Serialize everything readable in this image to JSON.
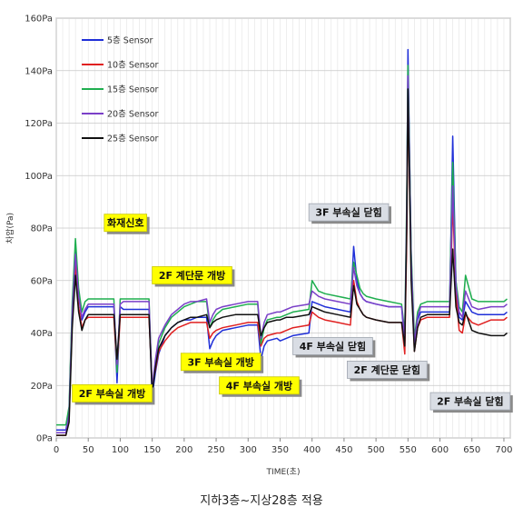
{
  "chart_data": {
    "type": "line",
    "title": "",
    "xlabel": "TIME(초)",
    "ylabel": "차압(Pa)",
    "xlim": [
      0,
      710
    ],
    "ylim": [
      0,
      160
    ],
    "x_ticks": [
      "0",
      "50",
      "100",
      "150",
      "200",
      "250",
      "300",
      "350",
      "400",
      "450",
      "500",
      "550",
      "600",
      "650",
      "700"
    ],
    "x_tick_values": [
      0,
      50,
      100,
      150,
      200,
      250,
      300,
      350,
      400,
      450,
      500,
      550,
      600,
      650,
      700
    ],
    "y_ticks": [
      "0Pa",
      "20Pa",
      "40Pa",
      "60Pa",
      "80Pa",
      "100Pa",
      "120Pa",
      "140Pa",
      "160Pa"
    ],
    "y_tick_values": [
      0,
      20,
      40,
      60,
      80,
      100,
      120,
      140,
      160
    ],
    "grid": true,
    "legend_position": "top-left",
    "series": [
      {
        "name": "5층 Sensor",
        "color": "#1f2fd8",
        "x": [
          0,
          15,
          20,
          25,
          30,
          35,
          40,
          45,
          50,
          55,
          60,
          90,
          95,
          100,
          105,
          145,
          150,
          155,
          160,
          170,
          180,
          190,
          200,
          210,
          220,
          235,
          240,
          245,
          250,
          260,
          280,
          300,
          315,
          320,
          325,
          330,
          345,
          350,
          360,
          370,
          395,
          400,
          410,
          420,
          440,
          460,
          465,
          470,
          475,
          480,
          485,
          500,
          520,
          540,
          545,
          548,
          550,
          555,
          560,
          565,
          570,
          580,
          600,
          615,
          620,
          625,
          630,
          635,
          640,
          650,
          660,
          680,
          700,
          705
        ],
        "y": [
          3,
          3,
          10,
          50,
          73,
          55,
          45,
          48,
          50,
          50,
          50,
          50,
          21,
          50,
          49,
          49,
          16,
          25,
          32,
          39,
          42,
          44,
          45,
          45,
          46,
          46,
          34,
          37,
          39,
          41,
          42,
          43,
          43,
          30,
          35,
          37,
          38,
          37,
          38,
          39,
          40,
          52,
          51,
          50,
          49,
          48,
          73,
          60,
          55,
          53,
          52,
          51,
          50,
          50,
          36,
          80,
          148,
          70,
          36,
          45,
          48,
          48,
          48,
          48,
          115,
          60,
          46,
          45,
          52,
          48,
          47,
          47,
          47,
          48
        ]
      },
      {
        "name": "10층 Sensor",
        "color": "#e02020",
        "x": [
          0,
          15,
          20,
          25,
          30,
          35,
          40,
          45,
          50,
          55,
          60,
          90,
          95,
          100,
          105,
          145,
          150,
          155,
          160,
          170,
          180,
          190,
          200,
          210,
          220,
          235,
          240,
          245,
          250,
          260,
          280,
          300,
          315,
          320,
          325,
          330,
          345,
          350,
          360,
          370,
          395,
          400,
          410,
          420,
          440,
          460,
          465,
          470,
          475,
          480,
          485,
          500,
          520,
          540,
          545,
          548,
          550,
          555,
          560,
          565,
          570,
          580,
          600,
          615,
          620,
          625,
          630,
          635,
          640,
          650,
          660,
          680,
          700,
          705
        ],
        "y": [
          1,
          1,
          8,
          45,
          66,
          50,
          42,
          45,
          46,
          46,
          46,
          46,
          26,
          46,
          46,
          46,
          20,
          26,
          33,
          37,
          40,
          42,
          43,
          44,
          44,
          44,
          38,
          40,
          41,
          42,
          43,
          44,
          44,
          35,
          38,
          39,
          40,
          40,
          41,
          42,
          43,
          48,
          46,
          45,
          44,
          43,
          60,
          52,
          49,
          47,
          46,
          45,
          44,
          44,
          32,
          75,
          130,
          65,
          33,
          42,
          45,
          46,
          46,
          46,
          90,
          55,
          41,
          40,
          47,
          44,
          43,
          45,
          45,
          46
        ]
      },
      {
        "name": "15층 Sensor",
        "color": "#1fae4f",
        "x": [
          0,
          15,
          20,
          25,
          30,
          35,
          40,
          45,
          50,
          55,
          60,
          90,
          95,
          100,
          105,
          145,
          150,
          155,
          160,
          170,
          180,
          190,
          200,
          210,
          220,
          235,
          240,
          245,
          250,
          260,
          280,
          300,
          315,
          320,
          325,
          330,
          345,
          350,
          360,
          370,
          395,
          400,
          410,
          420,
          440,
          460,
          465,
          470,
          475,
          480,
          485,
          500,
          520,
          540,
          545,
          548,
          550,
          555,
          560,
          565,
          570,
          580,
          600,
          615,
          620,
          625,
          630,
          635,
          640,
          650,
          660,
          680,
          700,
          705
        ],
        "y": [
          5,
          5,
          12,
          52,
          76,
          57,
          48,
          52,
          53,
          53,
          53,
          53,
          25,
          53,
          53,
          53,
          18,
          28,
          36,
          42,
          46,
          48,
          50,
          51,
          52,
          52,
          42,
          45,
          47,
          49,
          50,
          51,
          51,
          36,
          42,
          45,
          46,
          46,
          47,
          48,
          49,
          60,
          56,
          55,
          54,
          53,
          67,
          62,
          57,
          55,
          54,
          53,
          52,
          51,
          40,
          90,
          142,
          72,
          38,
          48,
          51,
          52,
          52,
          52,
          105,
          60,
          50,
          48,
          62,
          53,
          52,
          52,
          52,
          53
        ]
      },
      {
        "name": "20층 Sensor",
        "color": "#7a3fc8",
        "x": [
          0,
          15,
          20,
          25,
          30,
          35,
          40,
          45,
          50,
          55,
          60,
          90,
          95,
          100,
          105,
          145,
          150,
          155,
          160,
          170,
          180,
          190,
          200,
          210,
          220,
          235,
          240,
          245,
          250,
          260,
          280,
          300,
          315,
          320,
          325,
          330,
          345,
          350,
          360,
          370,
          395,
          400,
          410,
          420,
          440,
          460,
          465,
          470,
          475,
          480,
          485,
          500,
          520,
          540,
          545,
          548,
          550,
          555,
          560,
          565,
          570,
          580,
          600,
          615,
          620,
          625,
          630,
          635,
          640,
          650,
          660,
          680,
          700,
          705
        ],
        "y": [
          2,
          2,
          9,
          48,
          70,
          54,
          46,
          49,
          51,
          51,
          51,
          51,
          28,
          51,
          52,
          52,
          19,
          30,
          38,
          43,
          47,
          49,
          51,
          52,
          52,
          53,
          44,
          47,
          49,
          50,
          51,
          52,
          52,
          38,
          44,
          47,
          48,
          48,
          49,
          50,
          51,
          56,
          54,
          53,
          52,
          51,
          65,
          58,
          55,
          53,
          52,
          51,
          50,
          50,
          38,
          85,
          138,
          68,
          36,
          46,
          50,
          50,
          50,
          50,
          96,
          58,
          48,
          46,
          56,
          50,
          49,
          50,
          50,
          51
        ]
      },
      {
        "name": "25층 Sensor",
        "color": "#111111",
        "x": [
          0,
          15,
          20,
          25,
          30,
          35,
          40,
          45,
          50,
          55,
          60,
          90,
          95,
          100,
          105,
          145,
          150,
          155,
          160,
          170,
          180,
          190,
          200,
          210,
          220,
          235,
          240,
          245,
          250,
          260,
          280,
          300,
          315,
          320,
          325,
          330,
          345,
          350,
          360,
          370,
          395,
          400,
          410,
          420,
          440,
          460,
          465,
          470,
          475,
          480,
          485,
          500,
          520,
          540,
          545,
          548,
          550,
          555,
          560,
          565,
          570,
          580,
          600,
          615,
          620,
          625,
          630,
          635,
          640,
          650,
          660,
          680,
          700,
          705
        ],
        "y": [
          1,
          1,
          6,
          42,
          62,
          48,
          41,
          45,
          47,
          47,
          47,
          47,
          30,
          47,
          47,
          47,
          17,
          27,
          34,
          39,
          42,
          44,
          45,
          46,
          46,
          47,
          42,
          44,
          45,
          46,
          47,
          47,
          47,
          39,
          42,
          44,
          45,
          45,
          46,
          46,
          47,
          50,
          49,
          48,
          47,
          46,
          58,
          51,
          49,
          47,
          46,
          45,
          44,
          44,
          35,
          80,
          133,
          60,
          33,
          42,
          46,
          47,
          47,
          47,
          72,
          50,
          44,
          43,
          48,
          41,
          40,
          39,
          39,
          40
        ]
      }
    ],
    "annotations": [
      {
        "text": "화재신호",
        "x": 75,
        "y": 82,
        "style": "yellow"
      },
      {
        "text": "2F 계단문 개방",
        "x": 150,
        "y": 62,
        "style": "yellow"
      },
      {
        "text": "2F 부속실 개방",
        "x": 25,
        "y": 17,
        "style": "yellow"
      },
      {
        "text": "3F 부속실 개방",
        "x": 195,
        "y": 29,
        "style": "yellow"
      },
      {
        "text": "4F 부속실 개방",
        "x": 255,
        "y": 20,
        "style": "yellow"
      },
      {
        "text": "3F 부속실 닫힘",
        "x": 395,
        "y": 86,
        "style": "gray"
      },
      {
        "text": "4F 부속실 닫힘",
        "x": 370,
        "y": 35,
        "style": "gray"
      },
      {
        "text": "2F 계단문 닫힘",
        "x": 455,
        "y": 26,
        "style": "gray"
      },
      {
        "text": "2F 부속실 닫힘",
        "x": 585,
        "y": 14,
        "style": "gray"
      }
    ]
  },
  "caption": "지하3층~지상28층 적용"
}
